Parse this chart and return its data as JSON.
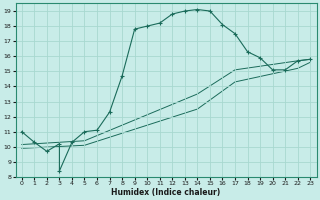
{
  "xlabel": "Humidex (Indice chaleur)",
  "bg_color": "#c8ece8",
  "grid_color": "#a8d8d0",
  "line_color": "#1a6b5a",
  "xlim": [
    -0.5,
    23.5
  ],
  "ylim": [
    8,
    19.5
  ],
  "xticks": [
    0,
    1,
    2,
    3,
    4,
    5,
    6,
    7,
    8,
    9,
    10,
    11,
    12,
    13,
    14,
    15,
    16,
    17,
    18,
    19,
    20,
    21,
    22,
    23
  ],
  "yticks": [
    8,
    9,
    10,
    11,
    12,
    13,
    14,
    15,
    16,
    17,
    18,
    19
  ],
  "series_main": {
    "x": [
      0,
      1,
      2,
      3,
      3,
      4,
      5,
      6,
      7,
      8,
      9,
      10,
      11,
      12,
      13,
      14,
      15,
      16,
      17,
      18,
      19,
      20,
      21,
      22,
      23
    ],
    "y": [
      11.0,
      10.3,
      9.7,
      10.2,
      8.4,
      10.3,
      11.0,
      11.1,
      12.3,
      14.7,
      17.8,
      18.0,
      18.2,
      18.8,
      19.0,
      19.1,
      19.0,
      18.1,
      17.5,
      16.3,
      15.9,
      15.1,
      15.1,
      15.7,
      15.8
    ]
  },
  "series_line1": {
    "x": [
      0,
      5,
      14,
      17,
      22,
      23
    ],
    "y": [
      10.15,
      10.4,
      13.5,
      15.1,
      15.7,
      15.8
    ]
  },
  "series_line2": {
    "x": [
      0,
      5,
      14,
      17,
      22,
      23
    ],
    "y": [
      9.9,
      10.1,
      12.5,
      14.3,
      15.2,
      15.6
    ]
  }
}
